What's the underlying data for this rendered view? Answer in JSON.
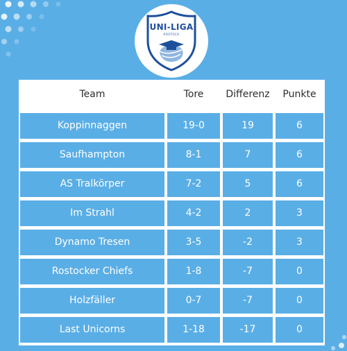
{
  "logo": {
    "title": "UNI-LIGA",
    "subtitle": "ROSTOCK"
  },
  "columns": [
    "Team",
    "Tore",
    "Differenz",
    "Punkte"
  ],
  "rows": [
    {
      "team": "Koppinnaggen",
      "tore": "19-0",
      "differenz": "19",
      "punkte": "6"
    },
    {
      "team": "Saufhampton",
      "tore": "8-1",
      "differenz": "7",
      "punkte": "6"
    },
    {
      "team": "AS Tralkörper",
      "tore": "7-2",
      "differenz": "5",
      "punkte": "6"
    },
    {
      "team": "Im Strahl",
      "tore": "4-2",
      "differenz": "2",
      "punkte": "3"
    },
    {
      "team": "Dynamo Tresen",
      "tore": "3-5",
      "differenz": "-2",
      "punkte": "3"
    },
    {
      "team": "Rostocker Chiefs",
      "tore": "1-8",
      "differenz": "-7",
      "punkte": "0"
    },
    {
      "team": "Holzfäller",
      "tore": "0-7",
      "differenz": "-7",
      "punkte": "0"
    },
    {
      "team": "Last Unicorns",
      "tore": "1-18",
      "differenz": "-17",
      "punkte": "0"
    }
  ],
  "colors": {
    "background": "#5aaee6",
    "cell": "#5aaee6",
    "header_text": "#2d2d2d",
    "logo_blue": "#1e4f9a"
  }
}
